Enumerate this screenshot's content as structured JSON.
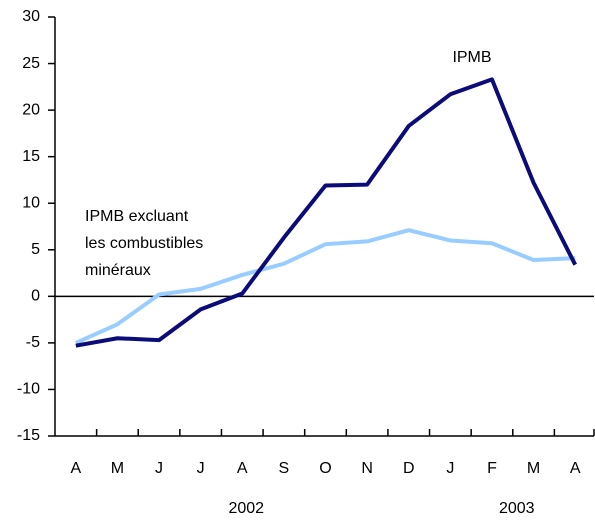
{
  "chart_data": {
    "type": "line",
    "categories": [
      "A",
      "M",
      "J",
      "J",
      "A",
      "S",
      "O",
      "N",
      "D",
      "J",
      "F",
      "M",
      "A"
    ],
    "year_labels": [
      "2002",
      "2003"
    ],
    "series": [
      {
        "name": "IPMB",
        "color": "#0b0b7a",
        "values": [
          -5.3,
          -4.5,
          -4.7,
          -1.4,
          0.3,
          6.3,
          11.9,
          12.0,
          18.3,
          21.7,
          23.3,
          12.2,
          3.4
        ]
      },
      {
        "name_lines": [
          "IPMB excluant",
          "les combustibles",
          "minéraux"
        ],
        "color": "#99ccff",
        "values": [
          -5.0,
          -3.0,
          0.2,
          0.8,
          2.3,
          3.5,
          5.6,
          5.9,
          7.1,
          6.0,
          5.7,
          3.9,
          4.1
        ]
      }
    ],
    "ylim": [
      -15,
      30
    ],
    "yticks": [
      -15,
      -10,
      -5,
      0,
      5,
      10,
      15,
      20,
      25,
      30
    ]
  }
}
